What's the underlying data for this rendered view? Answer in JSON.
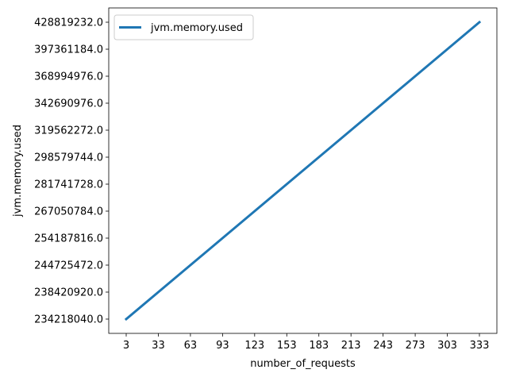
{
  "chart_data": {
    "type": "line",
    "x": [
      3,
      33,
      63,
      93,
      123,
      153,
      183,
      213,
      243,
      273,
      303,
      333
    ],
    "x_tick_labels": [
      "3",
      "33",
      "63",
      "93",
      "123",
      "153",
      "183",
      "213",
      "243",
      "273",
      "303",
      "333"
    ],
    "y_tick_labels": [
      "234218040.0",
      "238420920.0",
      "244725472.0",
      "254187816.0",
      "267050784.0",
      "281741728.0",
      "298579744.0",
      "319562272.0",
      "342690976.0",
      "368994976.0",
      "397361184.0",
      "428819232.0"
    ],
    "series": [
      {
        "name": "jvm.memory.used",
        "color": "#1f77b4",
        "values": [
          "234218040.0",
          "238420920.0",
          "244725472.0",
          "254187816.0",
          "267050784.0",
          "281741728.0",
          "298579744.0",
          "319562272.0",
          "342690976.0",
          "368994976.0",
          "397361184.0",
          "428819232.0"
        ]
      }
    ],
    "xlabel": "number_of_requests",
    "ylabel": "jvm.memory.used",
    "y_scale": "categorical",
    "grid": false,
    "legend_position": "top-left"
  }
}
